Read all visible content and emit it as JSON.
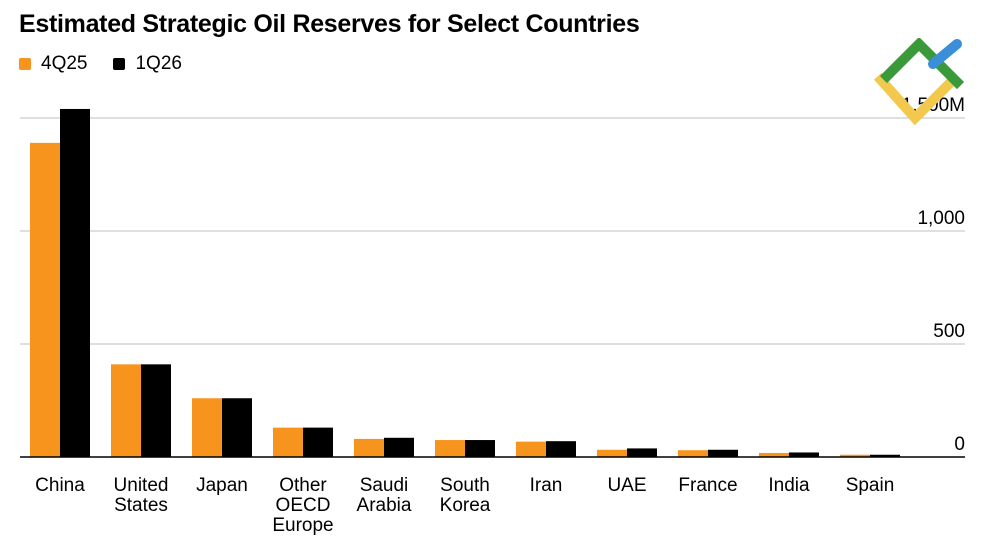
{
  "title": "Estimated Strategic Oil Reserves for Select Countries",
  "colors": {
    "4Q25": "#f7941d",
    "1Q26": "#000000",
    "grid": "#bfbfbf"
  },
  "logo": {
    "icon": "logo-icon"
  },
  "chart_data": {
    "type": "bar",
    "title": "Estimated Strategic Oil Reserves for Select Countries",
    "categories": [
      [
        "China"
      ],
      [
        "United",
        "States"
      ],
      [
        "Japan"
      ],
      [
        "Other",
        "OECD",
        "Europe"
      ],
      [
        "Saudi",
        "Arabia"
      ],
      [
        "South",
        "Korea"
      ],
      [
        "Iran"
      ],
      [
        "UAE"
      ],
      [
        "France"
      ],
      [
        "India"
      ],
      [
        "Spain"
      ]
    ],
    "series": [
      {
        "name": "4Q25",
        "values": [
          1390,
          410,
          260,
          130,
          80,
          75,
          68,
          32,
          30,
          18,
          10
        ]
      },
      {
        "name": "1Q26",
        "values": [
          1540,
          410,
          260,
          130,
          85,
          75,
          70,
          38,
          32,
          20,
          10
        ]
      }
    ],
    "ylim": [
      0,
      1500
    ],
    "yticks": [
      {
        "value": 0,
        "label": "0"
      },
      {
        "value": 500,
        "label": "500"
      },
      {
        "value": 1000,
        "label": "1,000"
      },
      {
        "value": 1500,
        "label": "1,500M"
      }
    ],
    "grid": true,
    "legend": "top-left"
  }
}
